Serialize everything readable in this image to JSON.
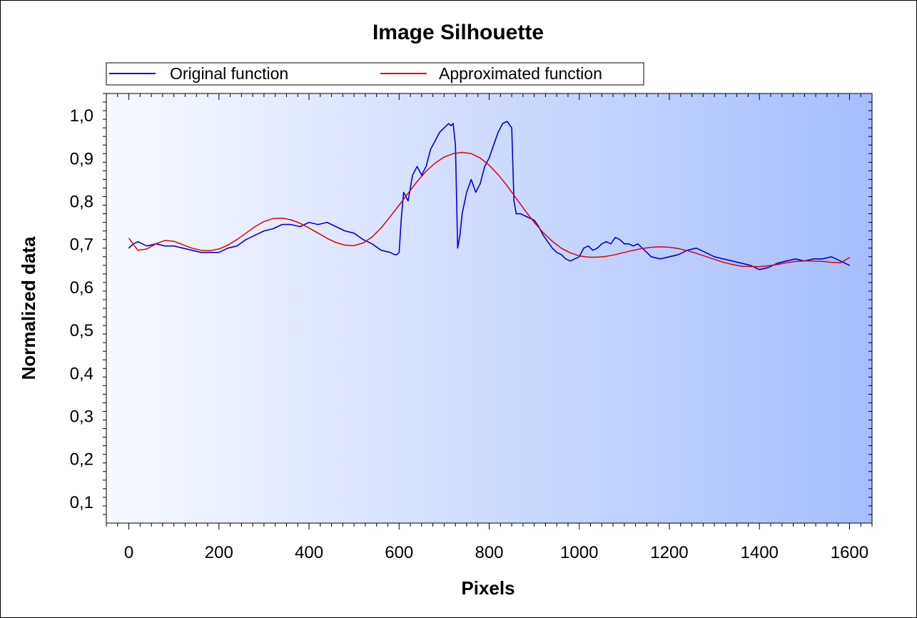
{
  "chart_data": {
    "type": "line",
    "title": "Image Silhouette",
    "xlabel": "Pixels",
    "ylabel": "Normalized data",
    "xlim": [
      -50,
      1650
    ],
    "ylim": [
      0.05,
      1.05
    ],
    "xticks": [
      0,
      200,
      400,
      600,
      800,
      1000,
      1200,
      1400,
      1600
    ],
    "xtick_labels": [
      "0",
      "200",
      "400",
      "600",
      "800",
      "1000",
      "1200",
      "1400",
      "1600"
    ],
    "yticks": [
      0.1,
      0.2,
      0.3,
      0.4,
      0.5,
      0.6,
      0.7,
      0.8,
      0.9,
      1.0
    ],
    "ytick_labels": [
      "0,1",
      "0,2",
      "0,3",
      "0,4",
      "0,5",
      "0,6",
      "0,7",
      "0,8",
      "0,9",
      "1,0"
    ],
    "grid": false,
    "legend_position": "top-left",
    "series": [
      {
        "name": "Original function",
        "color": "#0000dd",
        "x": [
          0,
          10,
          20,
          30,
          40,
          60,
          80,
          100,
          120,
          140,
          160,
          180,
          200,
          220,
          240,
          260,
          280,
          300,
          320,
          340,
          360,
          380,
          400,
          420,
          440,
          460,
          480,
          500,
          520,
          540,
          560,
          580,
          590,
          595,
          600,
          605,
          610,
          620,
          630,
          640,
          650,
          660,
          670,
          680,
          690,
          700,
          710,
          715,
          720,
          725,
          730,
          735,
          740,
          750,
          760,
          770,
          780,
          790,
          800,
          810,
          820,
          830,
          840,
          850,
          855,
          860,
          870,
          880,
          890,
          900,
          910,
          920,
          930,
          940,
          950,
          960,
          970,
          980,
          990,
          1000,
          1010,
          1020,
          1030,
          1040,
          1050,
          1060,
          1070,
          1080,
          1090,
          1100,
          1110,
          1120,
          1130,
          1140,
          1160,
          1180,
          1200,
          1220,
          1240,
          1260,
          1280,
          1300,
          1320,
          1340,
          1360,
          1380,
          1400,
          1420,
          1440,
          1460,
          1480,
          1500,
          1520,
          1540,
          1560,
          1580,
          1600
        ],
        "y": [
          0.69,
          0.7,
          0.705,
          0.7,
          0.695,
          0.7,
          0.695,
          0.695,
          0.69,
          0.685,
          0.68,
          0.68,
          0.68,
          0.69,
          0.695,
          0.71,
          0.72,
          0.73,
          0.735,
          0.745,
          0.745,
          0.74,
          0.75,
          0.745,
          0.75,
          0.74,
          0.73,
          0.725,
          0.71,
          0.7,
          0.685,
          0.68,
          0.675,
          0.675,
          0.68,
          0.76,
          0.82,
          0.8,
          0.86,
          0.88,
          0.86,
          0.88,
          0.92,
          0.94,
          0.96,
          0.97,
          0.98,
          0.975,
          0.98,
          0.93,
          0.69,
          0.72,
          0.77,
          0.82,
          0.85,
          0.82,
          0.84,
          0.88,
          0.9,
          0.93,
          0.96,
          0.98,
          0.985,
          0.97,
          0.8,
          0.77,
          0.77,
          0.765,
          0.76,
          0.755,
          0.74,
          0.72,
          0.705,
          0.69,
          0.68,
          0.675,
          0.665,
          0.66,
          0.665,
          0.67,
          0.69,
          0.695,
          0.685,
          0.69,
          0.7,
          0.705,
          0.7,
          0.715,
          0.71,
          0.7,
          0.7,
          0.695,
          0.7,
          0.69,
          0.67,
          0.665,
          0.67,
          0.675,
          0.685,
          0.69,
          0.68,
          0.67,
          0.665,
          0.66,
          0.655,
          0.65,
          0.64,
          0.645,
          0.655,
          0.66,
          0.665,
          0.66,
          0.665,
          0.665,
          0.67,
          0.66,
          0.65
        ]
      },
      {
        "name": "Approximated function",
        "color": "#e00000",
        "x": [
          0,
          20,
          40,
          60,
          80,
          100,
          120,
          140,
          160,
          180,
          200,
          220,
          240,
          260,
          280,
          300,
          320,
          340,
          360,
          380,
          400,
          420,
          440,
          460,
          480,
          500,
          520,
          540,
          560,
          580,
          600,
          620,
          640,
          660,
          680,
          700,
          720,
          740,
          760,
          780,
          800,
          820,
          840,
          860,
          880,
          900,
          920,
          940,
          960,
          980,
          1000,
          1020,
          1040,
          1060,
          1080,
          1100,
          1120,
          1140,
          1160,
          1180,
          1200,
          1220,
          1240,
          1260,
          1280,
          1300,
          1320,
          1340,
          1360,
          1380,
          1400,
          1420,
          1440,
          1460,
          1480,
          1500,
          1520,
          1540,
          1560,
          1580,
          1600
        ],
        "y": [
          0.713,
          0.685,
          0.688,
          0.7,
          0.708,
          0.706,
          0.698,
          0.69,
          0.685,
          0.684,
          0.688,
          0.697,
          0.71,
          0.725,
          0.74,
          0.752,
          0.759,
          0.76,
          0.756,
          0.748,
          0.737,
          0.725,
          0.713,
          0.703,
          0.697,
          0.696,
          0.702,
          0.716,
          0.737,
          0.763,
          0.79,
          0.818,
          0.845,
          0.869,
          0.888,
          0.902,
          0.91,
          0.913,
          0.91,
          0.9,
          0.883,
          0.861,
          0.835,
          0.806,
          0.777,
          0.75,
          0.726,
          0.706,
          0.69,
          0.679,
          0.672,
          0.669,
          0.669,
          0.671,
          0.675,
          0.68,
          0.685,
          0.689,
          0.692,
          0.693,
          0.692,
          0.689,
          0.684,
          0.678,
          0.671,
          0.664,
          0.657,
          0.652,
          0.648,
          0.647,
          0.647,
          0.649,
          0.652,
          0.656,
          0.659,
          0.66,
          0.66,
          0.659,
          0.657,
          0.656,
          0.668
        ]
      }
    ]
  }
}
